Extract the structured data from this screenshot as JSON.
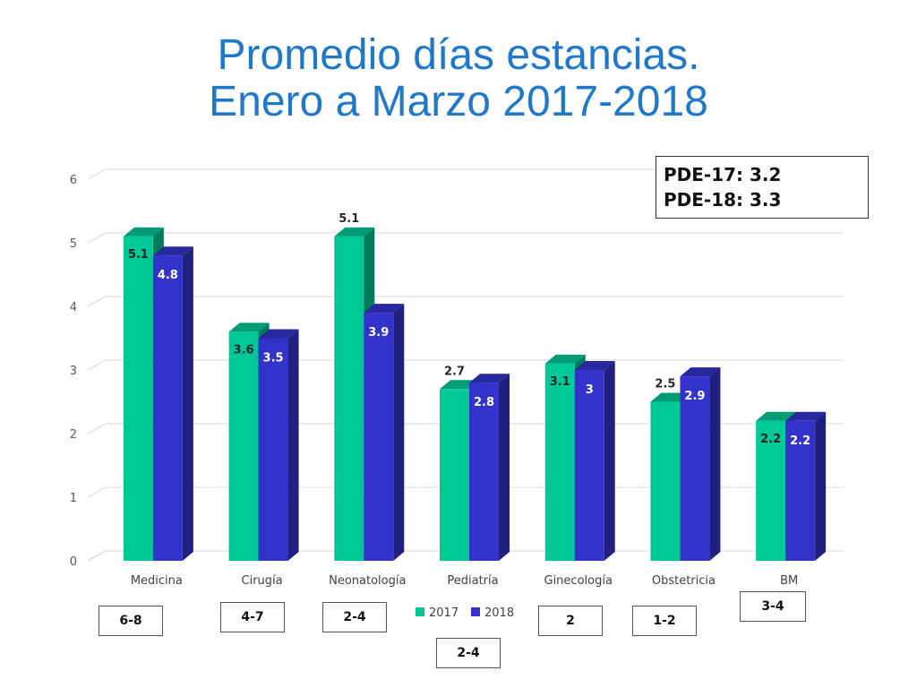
{
  "title": {
    "line1": "Promedio días estancias.",
    "line2": "Enero a Marzo 2017-2018"
  },
  "pde_box": {
    "line1": "PDE-17: 3.2",
    "line2": "PDE-18: 3.3"
  },
  "range_boxes": [
    "6-8",
    "4-7",
    "2-4",
    "2-4",
    "2",
    "1-2",
    "3-4"
  ],
  "chart_data": {
    "type": "bar",
    "title": "",
    "xlabel": "",
    "ylabel": "",
    "ylim": [
      0,
      6
    ],
    "yticks": [
      0,
      1,
      2,
      3,
      4,
      5,
      6
    ],
    "grid": true,
    "legend_position": "bottom",
    "categories": [
      "Medicina",
      "Cirugía",
      "Neonatología",
      "Pediatría",
      "Ginecología",
      "Obstetricia",
      "BM"
    ],
    "series": [
      {
        "name": "2017",
        "color": "#00c896",
        "values": [
          5.1,
          3.6,
          5.1,
          2.7,
          3.1,
          2.5,
          2.2
        ],
        "labels": [
          "5.1",
          "3.6",
          "5.1",
          "2.7",
          "3.1",
          "2.5",
          "2.2"
        ]
      },
      {
        "name": "2018",
        "color": "#3333cc",
        "values": [
          4.8,
          3.5,
          3.9,
          2.8,
          3.0,
          2.9,
          2.2
        ],
        "labels": [
          "4.8",
          "3.5",
          "3.9",
          "2.8",
          "3",
          "2.9",
          "2.2"
        ]
      }
    ]
  }
}
